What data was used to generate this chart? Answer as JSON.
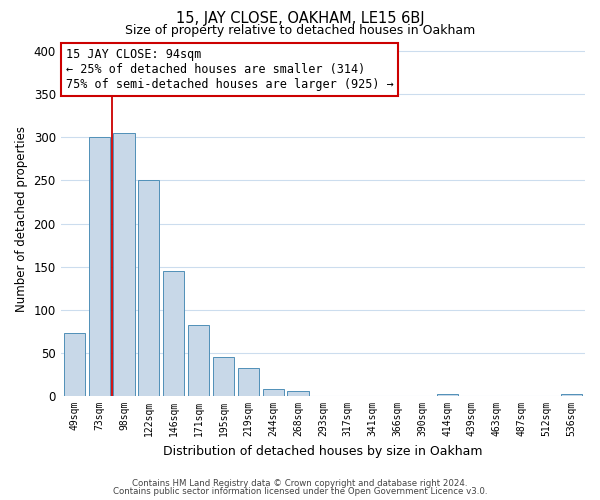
{
  "title": "15, JAY CLOSE, OAKHAM, LE15 6BJ",
  "subtitle": "Size of property relative to detached houses in Oakham",
  "xlabel": "Distribution of detached houses by size in Oakham",
  "ylabel": "Number of detached properties",
  "bar_labels": [
    "49sqm",
    "73sqm",
    "98sqm",
    "122sqm",
    "146sqm",
    "171sqm",
    "195sqm",
    "219sqm",
    "244sqm",
    "268sqm",
    "293sqm",
    "317sqm",
    "341sqm",
    "366sqm",
    "390sqm",
    "414sqm",
    "439sqm",
    "463sqm",
    "487sqm",
    "512sqm",
    "536sqm"
  ],
  "bar_heights": [
    73,
    300,
    305,
    250,
    145,
    82,
    45,
    32,
    8,
    6,
    0,
    0,
    0,
    0,
    0,
    2,
    0,
    0,
    0,
    0,
    2
  ],
  "bar_color": "#c8d8e8",
  "bar_edge_color": "#5090b8",
  "ylim": [
    0,
    410
  ],
  "yticks": [
    0,
    50,
    100,
    150,
    200,
    250,
    300,
    350,
    400
  ],
  "vline_x": 1.5,
  "vline_color": "#cc0000",
  "annotation_title": "15 JAY CLOSE: 94sqm",
  "annotation_line1": "← 25% of detached houses are smaller (314)",
  "annotation_line2": "75% of semi-detached houses are larger (925) →",
  "annotation_box_color": "#ffffff",
  "annotation_box_edge": "#cc0000",
  "footer_line1": "Contains HM Land Registry data © Crown copyright and database right 2024.",
  "footer_line2": "Contains public sector information licensed under the Open Government Licence v3.0.",
  "bg_color": "#ffffff",
  "grid_color": "#ccddee"
}
